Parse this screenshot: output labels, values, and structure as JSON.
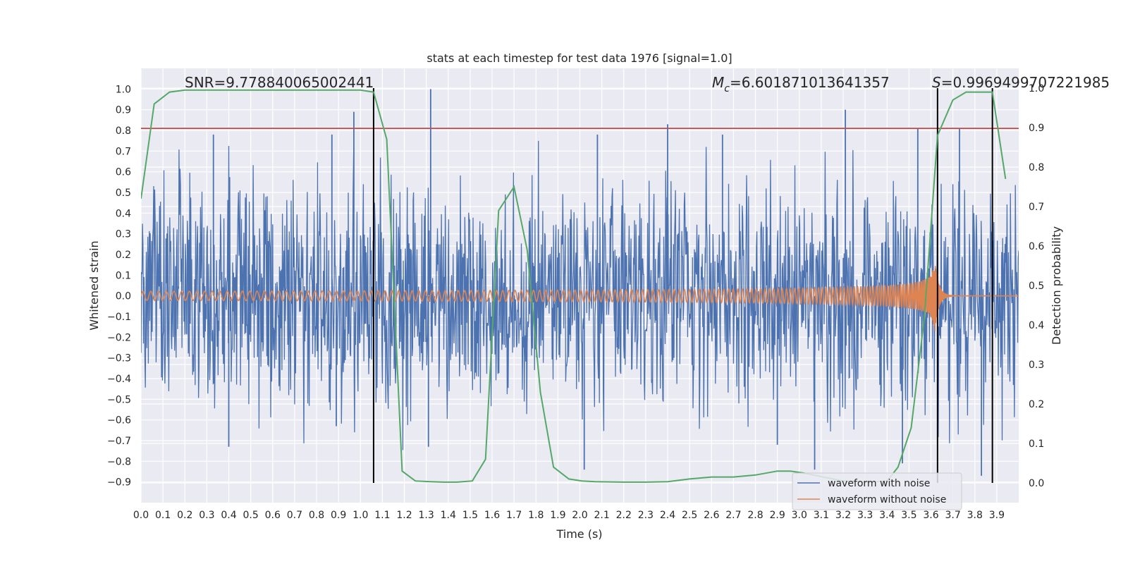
{
  "chart_data": {
    "type": "line",
    "title": "stats at each timestep for test data 1976 [signal=1.0]",
    "xlabel": "Time (s)",
    "ylabel": "Whitened strain",
    "y2label": "Detection probability",
    "xlim": [
      0.0,
      4.0
    ],
    "ylim": [
      -1.0,
      1.1
    ],
    "y2lim": [
      -0.05,
      1.05
    ],
    "xticks": [
      "0.0",
      "0.1",
      "0.2",
      "0.3",
      "0.4",
      "0.5",
      "0.6",
      "0.7",
      "0.8",
      "0.9",
      "1.0",
      "1.1",
      "1.2",
      "1.3",
      "1.4",
      "1.5",
      "1.6",
      "1.7",
      "1.8",
      "1.9",
      "2.0",
      "2.1",
      "2.2",
      "2.3",
      "2.4",
      "2.5",
      "2.6",
      "2.7",
      "2.8",
      "2.9",
      "3.0",
      "3.1",
      "3.2",
      "3.3",
      "3.4",
      "3.5",
      "3.6",
      "3.7",
      "3.8",
      "3.9"
    ],
    "yticks": [
      "1.0",
      "0.9",
      "0.8",
      "0.7",
      "0.6",
      "0.5",
      "0.4",
      "0.3",
      "0.2",
      "0.1",
      "0.0",
      "−0.1",
      "−0.2",
      "−0.3",
      "−0.4",
      "−0.5",
      "−0.6",
      "−0.7",
      "−0.8",
      "−0.9"
    ],
    "y2ticks": [
      "1.0",
      "0.9",
      "0.8",
      "0.7",
      "0.6",
      "0.5",
      "0.4",
      "0.3",
      "0.2",
      "0.1",
      "0.0"
    ],
    "annotations": {
      "snr": "SNR=9.778840065002441",
      "mc_symbol": "M",
      "mc_sub": "c",
      "mc_value": "=6.601871013641357",
      "s_symbol": "S",
      "s_value": "=0.9969499707221985"
    },
    "threshold": 0.81,
    "vlines_x": [
      1.06,
      3.63,
      3.88
    ],
    "noise": {
      "name": "waveform with noise",
      "color": "#4c72b0",
      "duration": 4.0,
      "samples": 1800,
      "envelope": 0.45,
      "spikes": [
        {
          "x": 0.97,
          "y": 0.89
        },
        {
          "x": 1.32,
          "y": 1.0
        },
        {
          "x": 0.87,
          "y": 0.78
        },
        {
          "x": 0.33,
          "y": 0.78
        },
        {
          "x": 2.08,
          "y": 0.78
        },
        {
          "x": 2.4,
          "y": 0.83
        },
        {
          "x": 3.21,
          "y": 0.9
        },
        {
          "x": 2.65,
          "y": 0.78
        },
        {
          "x": 3.54,
          "y": 0.81
        },
        {
          "x": 3.73,
          "y": 0.81
        },
        {
          "x": 0.4,
          "y": -0.73
        },
        {
          "x": 2.02,
          "y": -0.84
        },
        {
          "x": 3.07,
          "y": -0.84
        },
        {
          "x": 3.83,
          "y": -0.87
        },
        {
          "x": 1.31,
          "y": -0.73
        },
        {
          "x": 3.47,
          "y": -0.81
        },
        {
          "x": 0.89,
          "y": -0.63
        },
        {
          "x": 2.9,
          "y": -0.72
        }
      ]
    },
    "clean": {
      "name": "waveform without noise",
      "color": "#dd8452",
      "f0": 28,
      "t_merge": 3.62,
      "amp0": 0.022,
      "amp_peak": 0.2
    },
    "probability": {
      "color": "#55a868",
      "t": [
        0.0,
        0.06,
        0.13,
        0.2,
        0.3,
        0.5,
        0.7,
        0.9,
        1.0,
        1.06,
        1.12,
        1.19,
        1.25,
        1.32,
        1.38,
        1.44,
        1.51,
        1.57,
        1.63,
        1.7,
        1.76,
        1.82,
        1.88,
        1.95,
        2.01,
        2.07,
        2.2,
        2.3,
        2.4,
        2.5,
        2.6,
        2.7,
        2.8,
        2.9,
        2.96,
        3.02,
        3.2,
        3.32,
        3.4,
        3.45,
        3.51,
        3.57,
        3.63,
        3.7,
        3.76,
        3.82,
        3.88,
        3.94
      ],
      "p": [
        0.72,
        0.96,
        0.99,
        0.995,
        0.995,
        0.995,
        0.995,
        0.995,
        0.995,
        0.99,
        0.87,
        0.03,
        0.005,
        0.003,
        0.002,
        0.002,
        0.005,
        0.06,
        0.69,
        0.75,
        0.59,
        0.23,
        0.04,
        0.01,
        0.005,
        0.003,
        0.002,
        0.002,
        0.003,
        0.01,
        0.015,
        0.015,
        0.02,
        0.03,
        0.03,
        0.025,
        0.005,
        0.002,
        0.005,
        0.04,
        0.14,
        0.42,
        0.88,
        0.97,
        0.99,
        0.99,
        0.99,
        0.77
      ]
    },
    "legend": {
      "placement": "bottom-right",
      "entries": [
        "waveform with noise",
        "waveform without noise"
      ]
    },
    "colors": {
      "plot_bg": "#eaeaf2",
      "grid": "#ffffff",
      "threshold": "#c44e52",
      "vline": "#000000"
    }
  }
}
